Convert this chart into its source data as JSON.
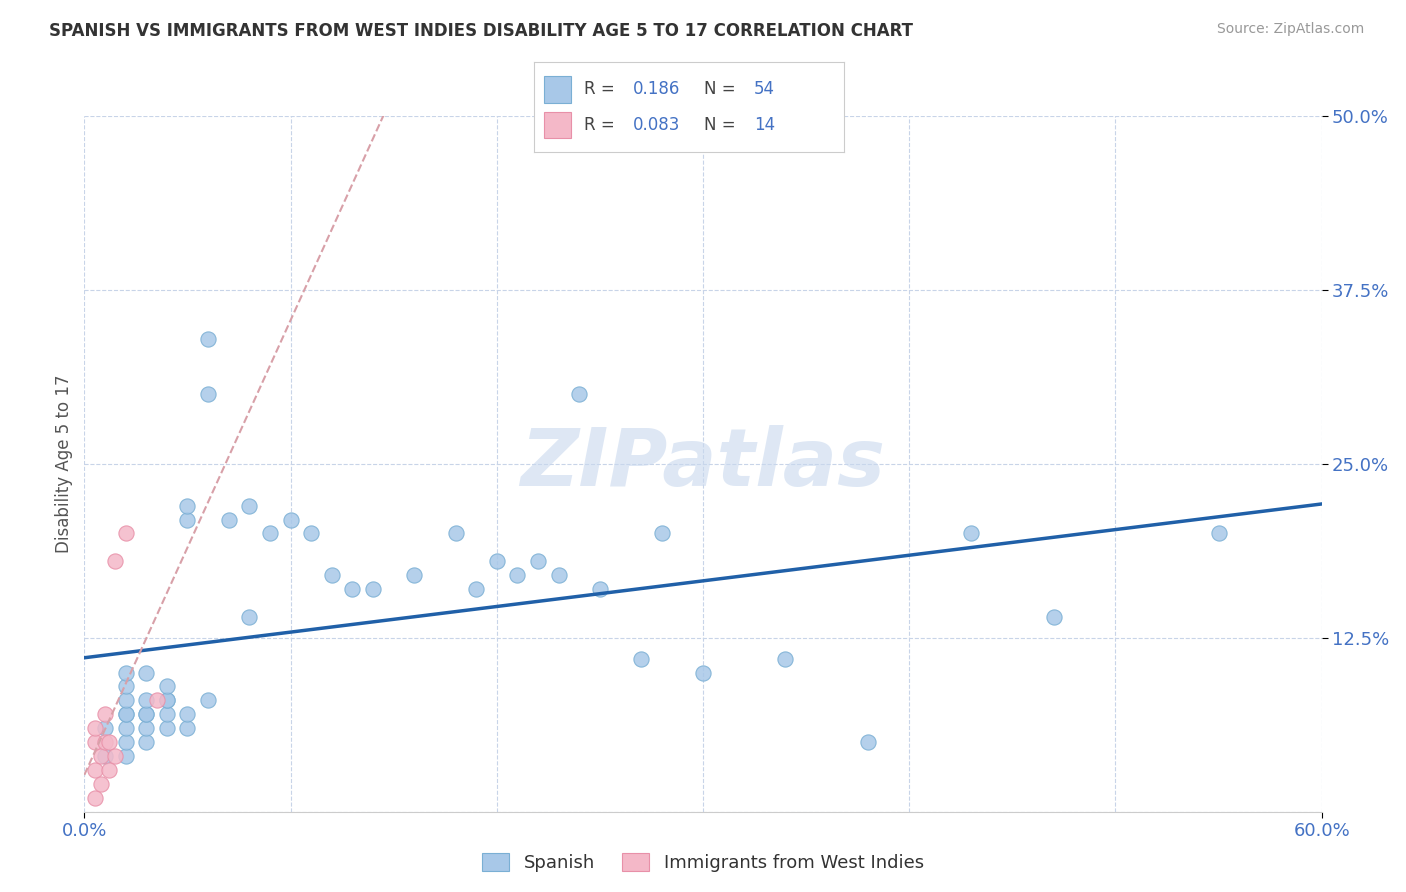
{
  "title": "SPANISH VS IMMIGRANTS FROM WEST INDIES DISABILITY AGE 5 TO 17 CORRELATION CHART",
  "source": "Source: ZipAtlas.com",
  "ylabel": "Disability Age 5 to 17",
  "xlim": [
    0.0,
    0.6
  ],
  "ylim": [
    0.0,
    0.5
  ],
  "yticks_right": [
    0.0,
    0.125,
    0.25,
    0.375,
    0.5
  ],
  "legend1_r": "0.186",
  "legend1_n": "54",
  "legend2_r": "0.083",
  "legend2_n": "14",
  "blue_scatter_color": "#a8c8e8",
  "blue_edge_color": "#7aafd4",
  "pink_scatter_color": "#f4b8c8",
  "pink_edge_color": "#e890a8",
  "trend_blue": "#2060a8",
  "trend_pink": "#d8a0a8",
  "watermark": "ZIPatlas",
  "background": "#ffffff",
  "grid_color": "#c8d4e8",
  "spanish_x": [
    0.01,
    0.01,
    0.02,
    0.02,
    0.02,
    0.02,
    0.02,
    0.02,
    0.02,
    0.02,
    0.03,
    0.03,
    0.03,
    0.03,
    0.03,
    0.03,
    0.04,
    0.04,
    0.04,
    0.04,
    0.04,
    0.05,
    0.05,
    0.05,
    0.05,
    0.06,
    0.06,
    0.06,
    0.07,
    0.08,
    0.08,
    0.09,
    0.1,
    0.11,
    0.12,
    0.13,
    0.14,
    0.16,
    0.18,
    0.19,
    0.2,
    0.21,
    0.22,
    0.23,
    0.24,
    0.25,
    0.27,
    0.28,
    0.3,
    0.34,
    0.38,
    0.43,
    0.47,
    0.55
  ],
  "spanish_y": [
    0.04,
    0.06,
    0.04,
    0.05,
    0.06,
    0.07,
    0.07,
    0.08,
    0.09,
    0.1,
    0.05,
    0.06,
    0.07,
    0.07,
    0.08,
    0.1,
    0.06,
    0.07,
    0.08,
    0.08,
    0.09,
    0.06,
    0.07,
    0.21,
    0.22,
    0.08,
    0.3,
    0.34,
    0.21,
    0.14,
    0.22,
    0.2,
    0.21,
    0.2,
    0.17,
    0.16,
    0.16,
    0.17,
    0.2,
    0.16,
    0.18,
    0.17,
    0.18,
    0.17,
    0.3,
    0.16,
    0.11,
    0.2,
    0.1,
    0.11,
    0.05,
    0.2,
    0.14,
    0.2
  ],
  "westindies_x": [
    0.005,
    0.005,
    0.005,
    0.005,
    0.008,
    0.008,
    0.01,
    0.01,
    0.012,
    0.012,
    0.015,
    0.015,
    0.02,
    0.035
  ],
  "westindies_y": [
    0.01,
    0.03,
    0.05,
    0.06,
    0.02,
    0.04,
    0.05,
    0.07,
    0.03,
    0.05,
    0.04,
    0.18,
    0.2,
    0.08
  ]
}
